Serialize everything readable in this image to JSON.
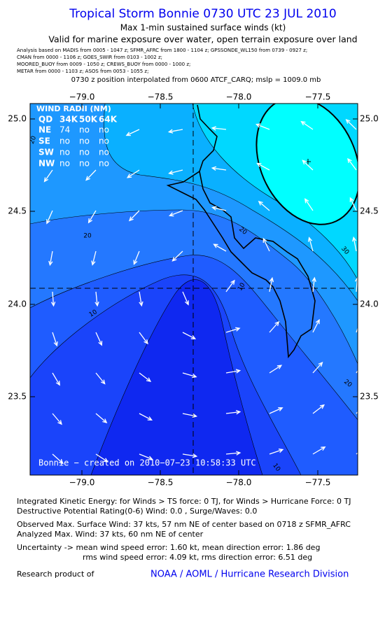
{
  "header": {
    "title": "Tropical Storm Bonnie 0730 UTC 23 JUL 2010",
    "subtitle1": "Max 1-min sustained surface winds (kt)",
    "subtitle2": "Valid for marine exposure over water, open terrain exposure over land"
  },
  "analysis_lines": [
    "Analysis based on   MADIS from 0005 - 1047 z;  SFMR_AFRC from 1800 - 1104 z;  GPSSONDE_WL150 from 0739 - 0927 z;",
    "CMAN from 0000 - 1106 z;  GOES_SWIR from 0103 - 1002 z;",
    "MOORED_BUOY from 0009 - 1050 z;  CREWS_BUOY from 0000 - 1000 z;",
    "METAR from 0000 - 1103 z;  ASOS from 0053 - 1055 z;"
  ],
  "position_note": "0730 z position interpolated from 0600 ATCF_CARQ; mslp = 1009.0 mb",
  "map": {
    "lon_ticks": [
      "−79.0",
      "−78.5",
      "−78.0",
      "−77.5"
    ],
    "lat_ticks": [
      "25.0",
      "24.5",
      "24.0",
      "23.5"
    ],
    "wind_radii": {
      "title": "WIND RADII (NM)",
      "header": [
        "QD",
        "34K",
        "50K",
        "64K"
      ],
      "rows": [
        [
          "NE",
          "74",
          "no",
          "no"
        ],
        [
          "SE",
          "no",
          "no",
          "no"
        ],
        [
          "SW",
          "no",
          "no",
          "no"
        ],
        [
          "NW",
          "no",
          "no",
          "no"
        ]
      ]
    },
    "contour_labels": [
      "20",
      "10",
      "10",
      "20",
      "30",
      "20",
      "10",
      "20"
    ],
    "credit": "Bonnie − created on 2010−07−23 10:58:33 UTC"
  },
  "footer": {
    "lines": [
      "Integrated Kinetic Energy:  for Winds > TS force: 0 TJ,  for Winds > Hurricane Force: 0 TJ",
      "Destructive Potential Rating(0-6)   Wind: 0.0 , Surge/Waves: 0.0",
      "Observed Max. Surface Wind: 37 kts, 57 nm NE of center based on 0718 z SFMR_AFRC",
      "Analyzed Max. Wind: 37 kts, 60 nm NE of center",
      "Uncertainty -> mean wind speed error: 1.60 kt,   mean direction error: 1.86 deg",
      "rms wind speed error: 4.09 kt,   rms direction error: 6.51 deg"
    ],
    "research_label": "Research product of",
    "research_org": "NOAA / AOML / Hurricane Research Division"
  }
}
